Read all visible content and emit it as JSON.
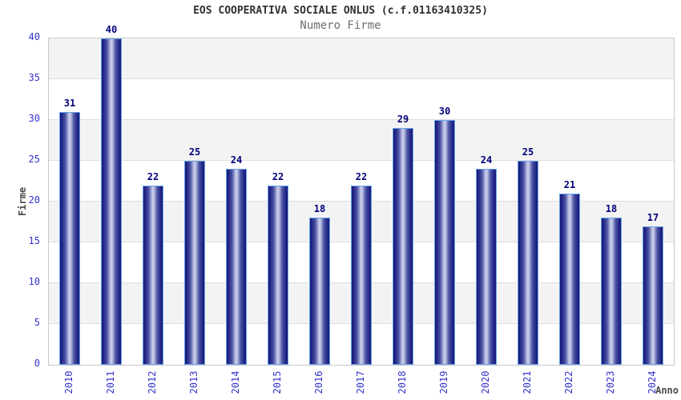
{
  "chart_data": {
    "type": "bar",
    "title": "EOS COOPERATIVA SOCIALE ONLUS (c.f.01163410325)",
    "subtitle": "Numero Firme",
    "xlabel": "Anno",
    "ylabel": "Firme",
    "categories": [
      "2010",
      "2011",
      "2012",
      "2013",
      "2014",
      "2015",
      "2016",
      "2017",
      "2018",
      "2019",
      "2020",
      "2021",
      "2022",
      "2023",
      "2024"
    ],
    "values": [
      31,
      40,
      22,
      25,
      24,
      22,
      18,
      22,
      29,
      30,
      24,
      25,
      21,
      18,
      17
    ],
    "ylim": [
      0,
      40
    ],
    "ytick_step": 5,
    "yticks": [
      "0",
      "5",
      "10",
      "15",
      "20",
      "25",
      "30",
      "35",
      "40"
    ],
    "grid": true,
    "legend": "none",
    "alternating_bands": true
  },
  "colors": {
    "title": "#303030",
    "subtitle": "#6e6e6e",
    "axis_title": "#4a4a4a",
    "tick_label": "#3333cc",
    "value_label": "#00007a",
    "plot_border": "#c9c9c9",
    "band": "#f3f3f3",
    "gridline": "#dedede",
    "bar_border": "#66a3e6",
    "bar_dark": "#191d7e",
    "bar_mid": "#4a51a3",
    "bar_light": "#c7cbe8"
  }
}
